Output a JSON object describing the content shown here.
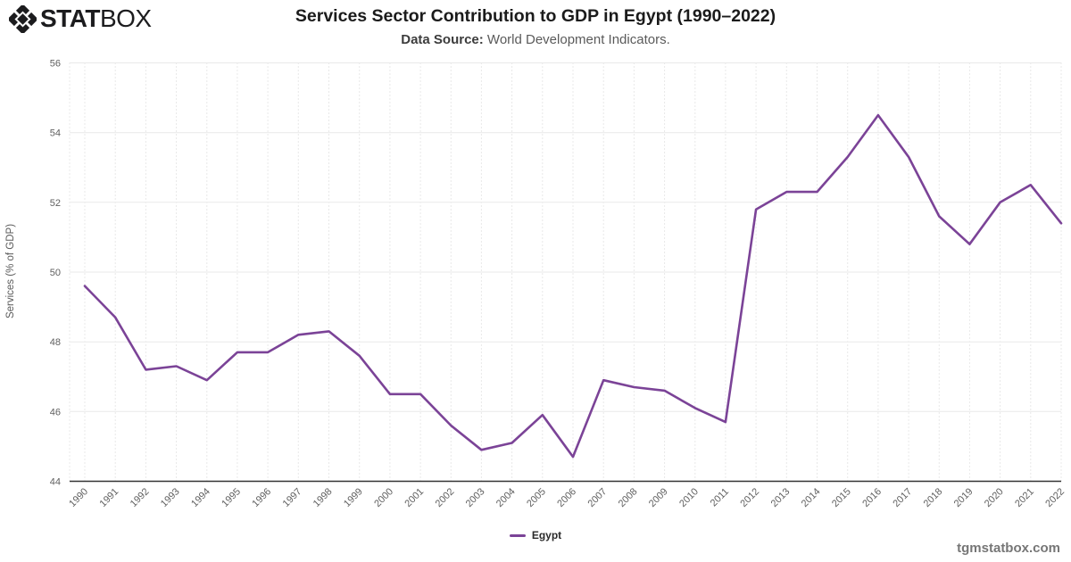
{
  "brand": {
    "stat": "STAT",
    "box": "BOX"
  },
  "header": {
    "title": "Services Sector Contribution to GDP in Egypt (1990–2022)",
    "subtitle_label": "Data Source:",
    "subtitle_text": " World Development Indicators."
  },
  "chart_data": {
    "type": "line",
    "title": "Services Sector Contribution to GDP in Egypt (1990–2022)",
    "xlabel": "",
    "ylabel": "Services (% of GDP)",
    "ylim": [
      44,
      56
    ],
    "yticks": [
      44,
      46,
      48,
      50,
      52,
      54,
      56
    ],
    "x": [
      1990,
      1991,
      1992,
      1993,
      1994,
      1995,
      1996,
      1997,
      1998,
      1999,
      2000,
      2001,
      2002,
      2003,
      2004,
      2005,
      2006,
      2007,
      2008,
      2009,
      2010,
      2011,
      2012,
      2013,
      2014,
      2015,
      2016,
      2017,
      2018,
      2019,
      2020,
      2021,
      2022
    ],
    "series": [
      {
        "name": "Egypt",
        "color": "#7B4397",
        "values": [
          49.6,
          48.7,
          47.2,
          47.3,
          46.9,
          47.7,
          47.7,
          48.2,
          48.3,
          47.6,
          46.5,
          46.5,
          45.6,
          44.9,
          45.1,
          45.9,
          44.7,
          46.9,
          46.7,
          46.6,
          46.1,
          45.7,
          51.8,
          52.3,
          52.3,
          53.3,
          54.5,
          53.3,
          51.6,
          50.8,
          52.0,
          52.5,
          51.4
        ]
      }
    ],
    "grid": {
      "horizontal": "solid",
      "vertical": "dotted"
    },
    "legend_position": "bottom-center"
  },
  "legend": {
    "items": [
      {
        "label": "Egypt",
        "color": "#7B4397"
      }
    ]
  },
  "footer": {
    "watermark": "tgmstatbox.com"
  },
  "colors": {
    "line": "#7B4397",
    "axis": "#333333",
    "grid_solid": "#e9e9e9",
    "grid_dotted": "#d2d2d2",
    "tick_text": "#5f5f5f",
    "logo": "#1c1c1e"
  }
}
